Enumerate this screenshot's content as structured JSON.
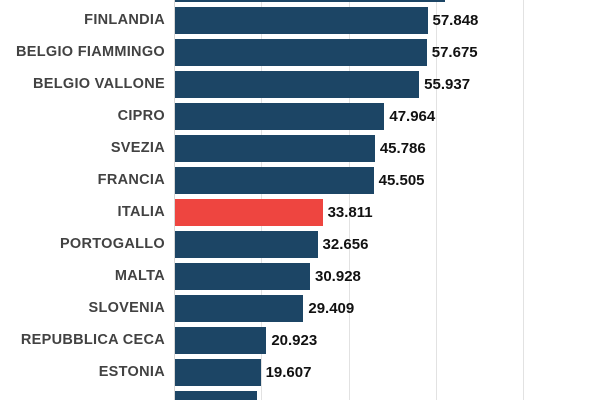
{
  "chart": {
    "colors": {
      "bar": "#1C4565",
      "highlight": "#EE4540",
      "gridline": "#E2E2E2",
      "category_label": "#424242",
      "value_label": "#111111",
      "background": "#FFFFFF"
    },
    "rows": [
      {
        "label": "",
        "value": 61900,
        "value_label": "",
        "partial": "top"
      },
      {
        "label": "FINLANDIA",
        "value": 57848,
        "value_label": "57.848"
      },
      {
        "label": "BELGIO FIAMMINGO",
        "value": 57675,
        "value_label": "57.675"
      },
      {
        "label": "BELGIO VALLONE",
        "value": 55937,
        "value_label": "55.937"
      },
      {
        "label": "CIPRO",
        "value": 47964,
        "value_label": "47.964"
      },
      {
        "label": "SVEZIA",
        "value": 45786,
        "value_label": "45.786"
      },
      {
        "label": "FRANCIA",
        "value": 45505,
        "value_label": "45.505"
      },
      {
        "label": "ITALIA",
        "value": 33811,
        "value_label": "33.811",
        "highlight": true
      },
      {
        "label": "PORTOGALLO",
        "value": 32656,
        "value_label": "32.656"
      },
      {
        "label": "MALTA",
        "value": 30928,
        "value_label": "30.928"
      },
      {
        "label": "SLOVENIA",
        "value": 29409,
        "value_label": "29.409"
      },
      {
        "label": "REPUBBLICA CECA",
        "value": 20923,
        "value_label": "20.923"
      },
      {
        "label": "ESTONIA",
        "value": 19607,
        "value_label": "19.607"
      },
      {
        "label": "",
        "value": 18700,
        "value_label": "",
        "partial": "bottom"
      }
    ]
  },
  "chart_data": {
    "type": "bar",
    "orientation": "horizontal",
    "title": "",
    "categories": [
      "FINLANDIA",
      "BELGIO FIAMMINGO",
      "BELGIO VALLONE",
      "CIPRO",
      "SVEZIA",
      "FRANCIA",
      "ITALIA",
      "PORTOGALLO",
      "MALTA",
      "SLOVENIA",
      "REPUBBLICA CECA",
      "ESTONIA"
    ],
    "values": [
      57848,
      57675,
      55937,
      47964,
      45786,
      45505,
      33811,
      32656,
      30928,
      29409,
      20923,
      19607
    ],
    "value_labels": [
      "57.848",
      "57.675",
      "55.937",
      "47.964",
      "45.786",
      "45.505",
      "33.811",
      "32.656",
      "30.928",
      "29.409",
      "20.923",
      "19.607"
    ],
    "highlight_category": "ITALIA",
    "highlight_color": "#EE4540",
    "bar_color": "#1C4565",
    "partial_bars_cropped": {
      "above_top_value_approx": 61900,
      "below_bottom_value_approx": 18700
    },
    "xlim": [
      0,
      97300
    ],
    "gridline_interval": 20000,
    "grid": true,
    "legend": false
  }
}
